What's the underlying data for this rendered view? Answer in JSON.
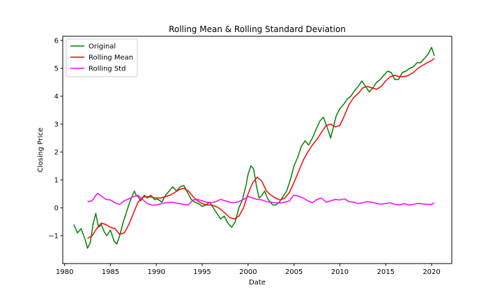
{
  "chart_data": {
    "type": "line",
    "title": "Rolling Mean & Rolling Standard Deviation",
    "xlabel": "Date",
    "ylabel": "Closing Price",
    "xlim": [
      1979.8,
      2022.2
    ],
    "ylim": [
      -2.0,
      6.15
    ],
    "xticks": [
      1980,
      1985,
      1990,
      1995,
      2000,
      2005,
      2010,
      2015,
      2020
    ],
    "yticks": [
      -1,
      0,
      1,
      2,
      3,
      4,
      5,
      6
    ],
    "grid": false,
    "legend_position": "upper left",
    "series": [
      {
        "name": "Original",
        "color": "#008000",
        "x": [
          1981.0,
          1981.4,
          1981.8,
          1982.2,
          1982.5,
          1982.8,
          1983.1,
          1983.4,
          1983.7,
          1984.0,
          1984.3,
          1984.6,
          1985.0,
          1985.4,
          1985.7,
          1986.0,
          1986.4,
          1986.8,
          1987.2,
          1987.6,
          1987.8,
          1988.0,
          1988.3,
          1988.7,
          1989.0,
          1989.4,
          1989.8,
          1990.2,
          1990.6,
          1991.0,
          1991.4,
          1991.8,
          1992.2,
          1992.6,
          1993.0,
          1993.4,
          1993.8,
          1994.2,
          1994.6,
          1995.0,
          1995.4,
          1995.8,
          1996.2,
          1996.6,
          1997.0,
          1997.4,
          1997.8,
          1998.2,
          1998.6,
          1999.0,
          1999.4,
          1999.8,
          2000.0,
          2000.3,
          2000.6,
          2000.9,
          2001.2,
          2001.5,
          2001.8,
          2002.1,
          2002.4,
          2002.7,
          2003.0,
          2003.4,
          2003.8,
          2004.2,
          2004.6,
          2005.0,
          2005.4,
          2005.8,
          2006.2,
          2006.6,
          2007.0,
          2007.4,
          2007.8,
          2008.2,
          2008.6,
          2009.0,
          2009.3,
          2009.6,
          2010.0,
          2010.4,
          2010.8,
          2011.2,
          2011.6,
          2012.0,
          2012.4,
          2012.8,
          2013.2,
          2013.6,
          2014.0,
          2014.4,
          2014.8,
          2015.2,
          2015.6,
          2016.0,
          2016.4,
          2016.8,
          2017.2,
          2017.6,
          2018.0,
          2018.4,
          2018.8,
          2019.2,
          2019.6,
          2020.0,
          2020.3
        ],
        "y": [
          -0.6,
          -0.9,
          -0.75,
          -1.1,
          -1.45,
          -1.25,
          -0.6,
          -0.2,
          -0.7,
          -0.6,
          -0.85,
          -1.0,
          -0.8,
          -1.2,
          -1.3,
          -1.0,
          -0.5,
          -0.1,
          0.3,
          0.6,
          0.45,
          0.4,
          0.25,
          0.45,
          0.35,
          0.45,
          0.3,
          0.3,
          0.2,
          0.45,
          0.6,
          0.75,
          0.6,
          0.75,
          0.8,
          0.55,
          0.3,
          0.2,
          0.15,
          0.05,
          0.1,
          0.2,
          0.0,
          -0.2,
          -0.4,
          -0.3,
          -0.55,
          -0.7,
          -0.5,
          0.0,
          0.3,
          0.85,
          1.2,
          1.5,
          1.4,
          0.8,
          0.35,
          0.45,
          0.6,
          0.35,
          0.2,
          0.1,
          0.1,
          0.2,
          0.4,
          0.6,
          1.0,
          1.5,
          1.8,
          2.2,
          2.4,
          2.25,
          2.5,
          2.8,
          3.1,
          3.25,
          2.9,
          2.5,
          2.9,
          3.3,
          3.55,
          3.7,
          3.9,
          4.0,
          4.2,
          4.35,
          4.55,
          4.35,
          4.15,
          4.3,
          4.5,
          4.6,
          4.75,
          4.9,
          4.85,
          4.6,
          4.6,
          4.85,
          4.9,
          5.0,
          5.05,
          5.2,
          5.2,
          5.35,
          5.5,
          5.75,
          5.45
        ]
      },
      {
        "name": "Rolling Mean",
        "color": "#ff0000",
        "x": [
          1982.5,
          1983.0,
          1983.5,
          1984.0,
          1984.5,
          1985.0,
          1985.5,
          1986.0,
          1986.5,
          1987.0,
          1987.5,
          1988.0,
          1988.5,
          1989.0,
          1989.5,
          1990.0,
          1990.5,
          1991.0,
          1991.5,
          1992.0,
          1992.5,
          1993.0,
          1993.5,
          1994.0,
          1994.5,
          1995.0,
          1995.5,
          1996.0,
          1996.5,
          1997.0,
          1997.5,
          1998.0,
          1998.5,
          1999.0,
          1999.5,
          2000.0,
          2000.5,
          2001.0,
          2001.5,
          2002.0,
          2002.5,
          2003.0,
          2003.5,
          2004.0,
          2004.5,
          2005.0,
          2005.5,
          2006.0,
          2006.5,
          2007.0,
          2007.5,
          2008.0,
          2008.5,
          2009.0,
          2009.5,
          2010.0,
          2010.5,
          2011.0,
          2011.5,
          2012.0,
          2012.5,
          2013.0,
          2013.5,
          2014.0,
          2014.5,
          2015.0,
          2015.5,
          2016.0,
          2016.5,
          2017.0,
          2017.5,
          2018.0,
          2018.5,
          2019.0,
          2019.5,
          2020.0,
          2020.3
        ],
        "y": [
          -1.1,
          -1.0,
          -0.75,
          -0.55,
          -0.6,
          -0.7,
          -0.75,
          -0.95,
          -0.9,
          -0.6,
          -0.2,
          0.2,
          0.38,
          0.4,
          0.38,
          0.35,
          0.35,
          0.4,
          0.45,
          0.55,
          0.65,
          0.7,
          0.6,
          0.4,
          0.25,
          0.15,
          0.1,
          0.1,
          0.05,
          -0.05,
          -0.2,
          -0.35,
          -0.4,
          -0.3,
          0.0,
          0.5,
          0.9,
          1.1,
          0.95,
          0.6,
          0.45,
          0.35,
          0.28,
          0.35,
          0.55,
          0.9,
          1.3,
          1.7,
          2.0,
          2.25,
          2.45,
          2.7,
          2.95,
          3.0,
          2.9,
          2.95,
          3.3,
          3.7,
          3.95,
          4.1,
          4.3,
          4.35,
          4.3,
          4.25,
          4.35,
          4.55,
          4.7,
          4.75,
          4.7,
          4.7,
          4.75,
          4.85,
          5.0,
          5.1,
          5.2,
          5.28,
          5.35
        ]
      },
      {
        "name": "Rolling Std",
        "color": "#ff00ff",
        "x": [
          1982.5,
          1983.0,
          1983.3,
          1983.6,
          1984.0,
          1984.5,
          1985.0,
          1985.5,
          1986.0,
          1986.5,
          1987.0,
          1987.5,
          1988.0,
          1988.5,
          1989.0,
          1989.5,
          1990.0,
          1990.5,
          1991.0,
          1991.5,
          1992.0,
          1992.5,
          1993.0,
          1993.5,
          1994.0,
          1994.5,
          1995.0,
          1995.5,
          1996.0,
          1996.5,
          1997.0,
          1997.5,
          1998.0,
          1998.5,
          1999.0,
          1999.5,
          2000.0,
          2000.5,
          2001.0,
          2001.5,
          2002.0,
          2002.5,
          2003.0,
          2003.5,
          2004.0,
          2004.5,
          2005.0,
          2005.5,
          2006.0,
          2006.5,
          2007.0,
          2007.5,
          2008.0,
          2008.5,
          2009.0,
          2009.5,
          2010.0,
          2010.5,
          2011.0,
          2011.5,
          2012.0,
          2012.5,
          2013.0,
          2013.5,
          2014.0,
          2014.5,
          2015.0,
          2015.5,
          2016.0,
          2016.5,
          2017.0,
          2017.5,
          2018.0,
          2018.5,
          2019.0,
          2019.5,
          2020.0,
          2020.3
        ],
        "y": [
          0.22,
          0.25,
          0.4,
          0.52,
          0.42,
          0.3,
          0.28,
          0.18,
          0.12,
          0.25,
          0.32,
          0.4,
          0.45,
          0.3,
          0.15,
          0.1,
          0.1,
          0.14,
          0.18,
          0.2,
          0.18,
          0.15,
          0.12,
          0.1,
          0.28,
          0.3,
          0.25,
          0.2,
          0.18,
          0.22,
          0.3,
          0.25,
          0.2,
          0.18,
          0.22,
          0.3,
          0.4,
          0.35,
          0.3,
          0.28,
          0.22,
          0.2,
          0.18,
          0.17,
          0.2,
          0.25,
          0.45,
          0.42,
          0.35,
          0.25,
          0.18,
          0.3,
          0.35,
          0.2,
          0.25,
          0.3,
          0.28,
          0.32,
          0.22,
          0.2,
          0.15,
          0.18,
          0.22,
          0.2,
          0.15,
          0.13,
          0.15,
          0.18,
          0.12,
          0.1,
          0.15,
          0.1,
          0.12,
          0.16,
          0.14,
          0.12,
          0.12,
          0.18
        ]
      }
    ]
  }
}
